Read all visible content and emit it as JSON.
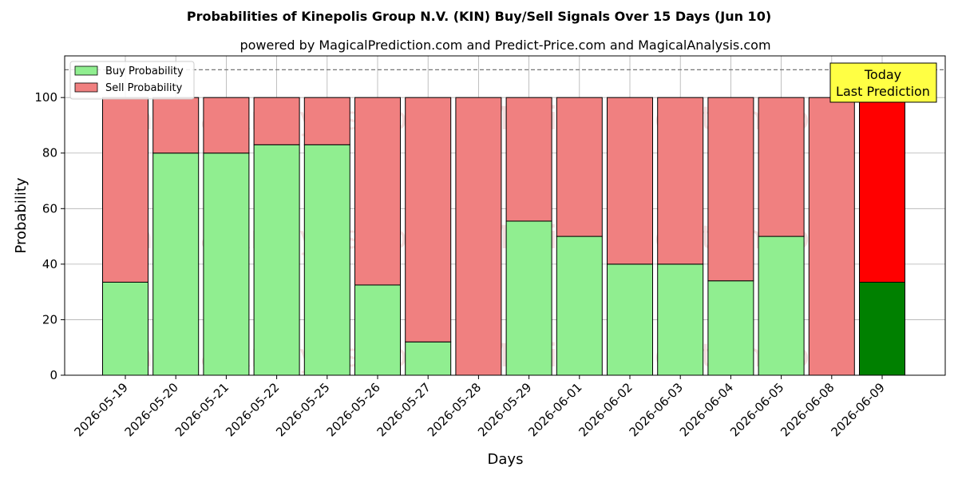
{
  "chart_data": {
    "type": "bar",
    "stacked": true,
    "title": "Probabilities of Kinepolis Group N.V. (KIN) Buy/Sell Signals Over 15 Days (Jun 10)",
    "subtitle": "powered by MagicalPrediction.com and Predict-Price.com and MagicalAnalysis.com",
    "xlabel": "Days",
    "ylabel": "Probability",
    "ylim": [
      0,
      115
    ],
    "yticks": [
      0,
      20,
      40,
      60,
      80,
      100
    ],
    "grid": true,
    "reference_line": 110,
    "legend_position": "top-left",
    "categories": [
      "2026-05-19",
      "2026-05-20",
      "2026-05-21",
      "2026-05-22",
      "2026-05-25",
      "2026-05-26",
      "2026-05-27",
      "2026-05-28",
      "2026-05-29",
      "2026-06-01",
      "2026-06-02",
      "2026-06-03",
      "2026-06-04",
      "2026-06-05",
      "2026-06-08",
      "2026-06-09"
    ],
    "series": [
      {
        "name": "Buy Probability",
        "values": [
          33.5,
          80,
          80,
          83,
          83,
          32.5,
          12,
          0,
          55.5,
          50,
          40,
          40,
          34,
          50,
          0,
          33.5
        ],
        "color": "#90ee90",
        "highlight_color": "#008000"
      },
      {
        "name": "Sell Probability",
        "values": [
          66.5,
          20,
          20,
          17,
          17,
          67.5,
          88,
          100,
          44.5,
          50,
          60,
          60,
          66,
          50,
          100,
          66.5
        ],
        "color": "#f08080",
        "highlight_color": "#ff0000"
      }
    ],
    "highlight_index": 15,
    "annotation": {
      "line1": "Today",
      "line2": "Last Prediction",
      "bg": "#ffff44"
    },
    "watermarks": [
      "MagicalAnalysis.com",
      "MagicalPrediction.com"
    ]
  }
}
